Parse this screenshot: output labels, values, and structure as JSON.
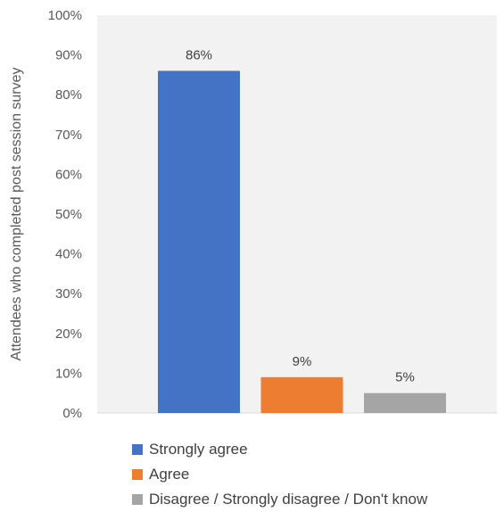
{
  "chart_data": {
    "type": "bar",
    "categories": [
      "Strongly agree",
      "Agree",
      "Disagree / Strongly disagree / Don't know"
    ],
    "values": [
      86,
      9,
      5
    ],
    "data_labels": [
      "86%",
      "9%",
      "5%"
    ],
    "colors": [
      "#4472C4",
      "#ED7D31",
      "#A5A5A5"
    ],
    "ylabel": "Attendees who completed post  session survey",
    "yticks": [
      "0%",
      "10%",
      "20%",
      "30%",
      "40%",
      "50%",
      "60%",
      "70%",
      "80%",
      "90%",
      "100%"
    ],
    "ylim": [
      0,
      100
    ],
    "grid": false,
    "plot_background": "#F2F2F2",
    "legend_position": "bottom"
  },
  "legend": {
    "items": [
      {
        "label": "Strongly agree",
        "color": "#4472C4"
      },
      {
        "label": "Agree",
        "color": "#ED7D31"
      },
      {
        "label": "Disagree / Strongly disagree / Don't know",
        "color": "#A5A5A5"
      }
    ]
  }
}
